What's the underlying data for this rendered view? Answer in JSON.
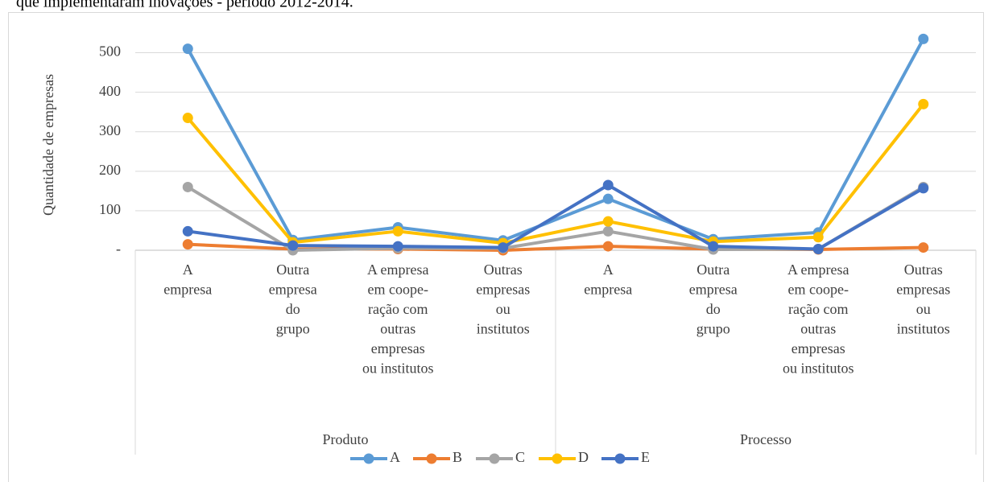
{
  "chart_data": {
    "type": "line",
    "title": "que implementaram inovações - período 2012-2014.",
    "y_label": "Quantidade de empresas",
    "categories": [
      "A\nempresa",
      "Outra\nempresa\ndo\ngrupo",
      "A empresa\nem coope-\nração com\noutras\nempresas\nou institutos",
      "Outras\nempresas\nou\ninstitutos",
      "A\nempresa",
      "Outra\nempresa\ndo\ngrupo",
      "A empresa\nem coope-\nração com\noutras\nempresas\nou institutos",
      "Outras\nempresas\nou\ninstitutos"
    ],
    "groups": [
      "Produto",
      "Processo"
    ],
    "series": [
      {
        "name": "A",
        "color": "#5b9bd5",
        "values": [
          510,
          26,
          58,
          25,
          130,
          28,
          45,
          535
        ]
      },
      {
        "name": "B",
        "color": "#ed7d31",
        "values": [
          15,
          3,
          3,
          0,
          10,
          3,
          2,
          7
        ]
      },
      {
        "name": "C",
        "color": "#a5a5a5",
        "values": [
          160,
          0,
          5,
          5,
          48,
          2,
          3,
          160
        ]
      },
      {
        "name": "D",
        "color": "#ffc000",
        "values": [
          335,
          20,
          48,
          18,
          73,
          22,
          33,
          370
        ]
      },
      {
        "name": "E",
        "color": "#4472c4",
        "values": [
          48,
          12,
          10,
          7,
          165,
          10,
          3,
          157
        ]
      }
    ],
    "ylim": [
      0,
      550
    ],
    "yticks": [
      {
        "value": 0,
        "label": "-"
      },
      100,
      200,
      300,
      400,
      500
    ],
    "grid": true,
    "legend": "bottom"
  }
}
